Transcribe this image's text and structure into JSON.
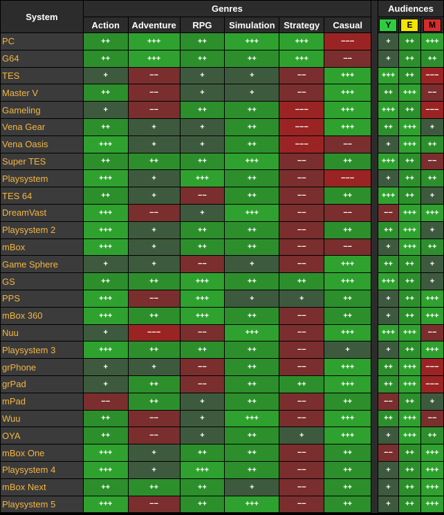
{
  "header": {
    "system": "System",
    "genres": "Genres",
    "audiences": "Audiences",
    "genre_cols": [
      "Action",
      "Adventure",
      "RPG",
      "Simulation",
      "Strategy",
      "Casual"
    ],
    "audience_cols": [
      {
        "label": "Y",
        "color": "#2ecc40"
      },
      {
        "label": "E",
        "color": "#f2e600"
      },
      {
        "label": "M",
        "color": "#d62c2c"
      }
    ]
  },
  "colors": {
    "+++": "#2fa12f",
    "++": "#2c8f2c",
    "+": "#3e5a3e",
    "−−": "#7a2e2e",
    "−−−": "#9a2424"
  },
  "rows": [
    {
      "name": "PC",
      "genres": [
        "++",
        "+++",
        "++",
        "+++",
        "+++",
        "−−−"
      ],
      "aud": [
        "+",
        "++",
        "+++"
      ]
    },
    {
      "name": "G64",
      "genres": [
        "++",
        "+++",
        "++",
        "++",
        "+++",
        "−−"
      ],
      "aud": [
        "+",
        "++",
        "++"
      ]
    },
    {
      "name": "TES",
      "genres": [
        "+",
        "−−",
        "+",
        "+",
        "−−",
        "+++"
      ],
      "aud": [
        "+++",
        "++",
        "−−−"
      ]
    },
    {
      "name": "Master V",
      "genres": [
        "++",
        "−−",
        "+",
        "+",
        "−−",
        "+++"
      ],
      "aud": [
        "++",
        "+++",
        "−−"
      ]
    },
    {
      "name": "Gameling",
      "genres": [
        "+",
        "−−",
        "++",
        "++",
        "−−−",
        "+++"
      ],
      "aud": [
        "+++",
        "++",
        "−−−"
      ]
    },
    {
      "name": "Vena Gear",
      "genres": [
        "++",
        "+",
        "+",
        "++",
        "−−−",
        "+++"
      ],
      "aud": [
        "++",
        "+++",
        "+"
      ]
    },
    {
      "name": "Vena Oasis",
      "genres": [
        "+++",
        "+",
        "+",
        "++",
        "−−−",
        "−−"
      ],
      "aud": [
        "+",
        "+++",
        "++"
      ]
    },
    {
      "name": "Super TES",
      "genres": [
        "++",
        "++",
        "++",
        "+++",
        "−−",
        "++"
      ],
      "aud": [
        "+++",
        "++",
        "−−"
      ]
    },
    {
      "name": "Playsystem",
      "genres": [
        "+++",
        "+",
        "+++",
        "++",
        "−−",
        "−−−"
      ],
      "aud": [
        "+",
        "++",
        "++"
      ]
    },
    {
      "name": "TES 64",
      "genres": [
        "++",
        "+",
        "−−",
        "++",
        "−−",
        "++"
      ],
      "aud": [
        "+++",
        "++",
        "+"
      ]
    },
    {
      "name": "DreamVast",
      "genres": [
        "+++",
        "−−",
        "+",
        "+++",
        "−−",
        "−−"
      ],
      "aud": [
        "−−",
        "+++",
        "+++"
      ]
    },
    {
      "name": "Playsystem 2",
      "genres": [
        "+++",
        "+",
        "++",
        "++",
        "−−",
        "++"
      ],
      "aud": [
        "++",
        "+++",
        "+"
      ]
    },
    {
      "name": "mBox",
      "genres": [
        "+++",
        "+",
        "++",
        "++",
        "−−",
        "−−"
      ],
      "aud": [
        "+",
        "+++",
        "++"
      ]
    },
    {
      "name": "Game Sphere",
      "genres": [
        "+",
        "+",
        "−−",
        "+",
        "−−",
        "+++"
      ],
      "aud": [
        "++",
        "++",
        "+"
      ]
    },
    {
      "name": "GS",
      "genres": [
        "++",
        "++",
        "+++",
        "++",
        "++",
        "+++"
      ],
      "aud": [
        "+++",
        "++",
        "+"
      ]
    },
    {
      "name": "PPS",
      "genres": [
        "+++",
        "−−",
        "+++",
        "+",
        "+",
        "++"
      ],
      "aud": [
        "+",
        "++",
        "+++"
      ]
    },
    {
      "name": "mBox 360",
      "genres": [
        "+++",
        "++",
        "+++",
        "++",
        "−−",
        "++"
      ],
      "aud": [
        "+",
        "++",
        "+++"
      ]
    },
    {
      "name": "Nuu",
      "genres": [
        "+",
        "−−−",
        "−−",
        "+++",
        "−−",
        "+++"
      ],
      "aud": [
        "+++",
        "+++",
        "−−"
      ]
    },
    {
      "name": "Playsystem 3",
      "genres": [
        "+++",
        "++",
        "++",
        "++",
        "−−",
        "+"
      ],
      "aud": [
        "+",
        "++",
        "+++"
      ]
    },
    {
      "name": "grPhone",
      "genres": [
        "+",
        "+",
        "−−",
        "++",
        "−−",
        "+++"
      ],
      "aud": [
        "++",
        "+++",
        "−−−"
      ]
    },
    {
      "name": "grPad",
      "genres": [
        "+",
        "++",
        "−−",
        "++",
        "++",
        "+++"
      ],
      "aud": [
        "++",
        "+++",
        "−−−"
      ]
    },
    {
      "name": "mPad",
      "genres": [
        "−−",
        "++",
        "+",
        "++",
        "−−",
        "++"
      ],
      "aud": [
        "−−",
        "++",
        "+"
      ]
    },
    {
      "name": "Wuu",
      "genres": [
        "++",
        "−−",
        "+",
        "+++",
        "−−",
        "+++"
      ],
      "aud": [
        "++",
        "+++",
        "−−"
      ]
    },
    {
      "name": "OYA",
      "genres": [
        "++",
        "−−",
        "+",
        "++",
        "+",
        "+++"
      ],
      "aud": [
        "+",
        "+++",
        "++"
      ]
    },
    {
      "name": "mBox One",
      "genres": [
        "+++",
        "+",
        "++",
        "++",
        "−−",
        "++"
      ],
      "aud": [
        "−−",
        "++",
        "+++"
      ]
    },
    {
      "name": "Playsystem 4",
      "genres": [
        "+++",
        "+",
        "+++",
        "++",
        "−−",
        "++"
      ],
      "aud": [
        "+",
        "++",
        "+++"
      ]
    },
    {
      "name": "mBox Next",
      "genres": [
        "++",
        "++",
        "++",
        "+",
        "−−",
        "++"
      ],
      "aud": [
        "+",
        "++",
        "+++"
      ]
    },
    {
      "name": "Playsystem 5",
      "genres": [
        "+++",
        "−−",
        "++",
        "+++",
        "−−",
        "++"
      ],
      "aud": [
        "+",
        "++",
        "+++"
      ]
    }
  ]
}
